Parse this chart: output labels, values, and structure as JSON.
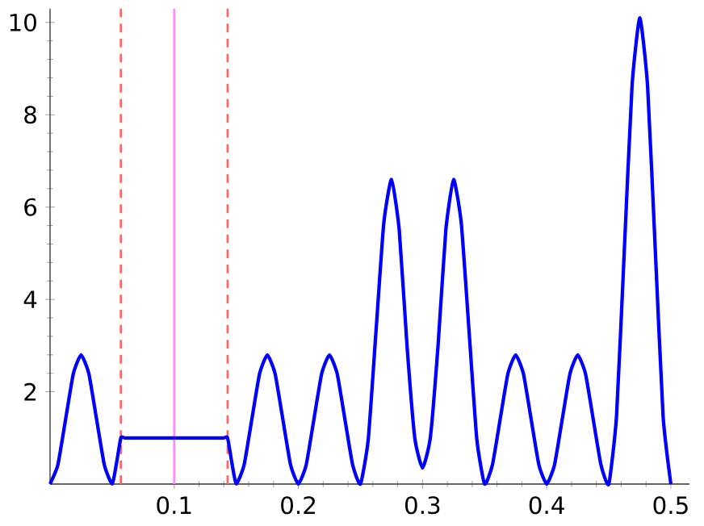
{
  "chart_data": {
    "type": "line",
    "xlim": [
      0,
      0.515
    ],
    "ylim": [
      0,
      10.3
    ],
    "xticks": [
      0.1,
      0.2,
      0.3,
      0.4,
      0.5
    ],
    "yticks": [
      2,
      4,
      6,
      8,
      10
    ],
    "grid": false,
    "marker": "none",
    "line_style": "solid",
    "series": [
      {
        "color": "#0000ff",
        "x": [
          0,
          0.00625,
          0.0125,
          0.01875,
          0.025,
          0.03125,
          0.0375,
          0.04375,
          0.05,
          0.0535,
          0.057,
          0.06,
          0.07,
          0.085,
          0.1,
          0.115,
          0.13,
          0.14,
          0.143,
          0.1465,
          0.15,
          0.15625,
          0.1625,
          0.16875,
          0.175,
          0.18125,
          0.1875,
          0.19375,
          0.2,
          0.20625,
          0.2125,
          0.21875,
          0.225,
          0.23125,
          0.2375,
          0.24375,
          0.25,
          0.25625,
          0.2625,
          0.26875,
          0.275,
          0.28125,
          0.2875,
          0.29375,
          0.3,
          0.30625,
          0.3125,
          0.31875,
          0.325,
          0.33125,
          0.3375,
          0.34375,
          0.35,
          0.35625,
          0.3625,
          0.36875,
          0.375,
          0.38125,
          0.3875,
          0.39375,
          0.4,
          0.40625,
          0.4125,
          0.41875,
          0.425,
          0.43125,
          0.4375,
          0.44375,
          0.45,
          0.45625,
          0.4625,
          0.46875,
          0.475,
          0.48125,
          0.4875,
          0.49375,
          0.5
        ],
        "values": [
          0,
          0.41,
          1.4,
          2.39,
          2.8,
          2.39,
          1.4,
          0.41,
          0,
          0.45,
          1,
          1,
          1,
          1,
          1,
          1,
          1,
          1,
          1,
          0.45,
          0,
          0.41,
          1.4,
          2.39,
          2.8,
          2.39,
          1.4,
          0.41,
          0,
          0.41,
          1.4,
          2.39,
          2.8,
          2.39,
          1.4,
          0.41,
          0,
          0.96,
          3.3,
          5.64,
          6.6,
          5.5,
          3.0,
          1.0,
          0.35,
          1.0,
          3.0,
          5.5,
          6.6,
          5.64,
          3.3,
          0.96,
          0,
          0.41,
          1.4,
          2.39,
          2.8,
          2.39,
          1.4,
          0.41,
          0,
          0.41,
          1.4,
          2.39,
          2.8,
          2.39,
          1.4,
          0.41,
          0,
          1.47,
          5.05,
          8.63,
          10.1,
          8.63,
          5.05,
          1.47,
          0
        ]
      }
    ],
    "ref_lines": [
      {
        "axis": "x",
        "value": 0.057,
        "color": "#ff6666",
        "line_style": "dashed"
      },
      {
        "axis": "x",
        "value": 0.1,
        "color": "#ff88ff",
        "line_style": "solid"
      },
      {
        "axis": "x",
        "value": 0.143,
        "color": "#ff6666",
        "line_style": "dashed"
      }
    ]
  }
}
